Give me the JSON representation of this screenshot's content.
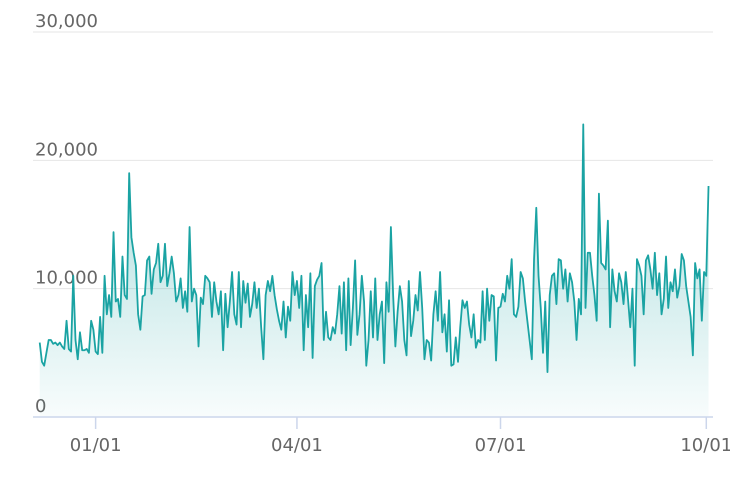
{
  "chart_data": {
    "type": "area",
    "color": "#1aa3a3",
    "grid": true,
    "xlim": [
      -28,
      276
    ],
    "xticks": [
      {
        "value": 0,
        "label": "01/01"
      },
      {
        "value": 90,
        "label": "04/01"
      },
      {
        "value": 181,
        "label": "07/01"
      },
      {
        "value": 273,
        "label": "10/01"
      }
    ],
    "ylim": [
      0,
      30000
    ],
    "yticks": [
      {
        "value": 0,
        "label": "0"
      },
      {
        "value": 10000,
        "label": "10,000"
      },
      {
        "value": 20000,
        "label": "20,000"
      },
      {
        "value": 30000,
        "label": "30,000"
      }
    ],
    "x": [
      -25,
      -24,
      -23,
      -22,
      -21,
      -20,
      -19,
      -18,
      -17,
      -16,
      -15,
      -14,
      -13,
      -12,
      -11,
      -10,
      -9,
      -8,
      -7,
      -6,
      -5,
      -4,
      -3,
      -2,
      -1,
      0,
      1,
      2,
      3,
      4,
      5,
      6,
      7,
      8,
      9,
      10,
      11,
      12,
      13,
      14,
      15,
      16,
      17,
      18,
      19,
      20,
      21,
      22,
      23,
      24,
      25,
      26,
      27,
      28,
      29,
      30,
      31,
      32,
      33,
      34,
      35,
      36,
      37,
      38,
      39,
      40,
      41,
      42,
      43,
      44,
      45,
      46,
      47,
      48,
      49,
      50,
      51,
      52,
      53,
      54,
      55,
      56,
      57,
      58,
      59,
      60,
      61,
      62,
      63,
      64,
      65,
      66,
      67,
      68,
      69,
      70,
      71,
      72,
      73,
      74,
      75,
      76,
      77,
      78,
      79,
      80,
      81,
      82,
      83,
      84,
      85,
      86,
      87,
      88,
      89,
      90,
      91,
      92,
      93,
      94,
      95,
      96,
      97,
      98,
      99,
      100,
      101,
      102,
      103,
      104,
      105,
      106,
      107,
      108,
      109,
      110,
      111,
      112,
      113,
      114,
      115,
      116,
      117,
      118,
      119,
      120,
      121,
      122,
      123,
      124,
      125,
      126,
      127,
      128,
      129,
      130,
      131,
      132,
      133,
      134,
      135,
      136,
      137,
      138,
      139,
      140,
      141,
      142,
      143,
      144,
      145,
      146,
      147,
      148,
      149,
      150,
      151,
      152,
      153,
      154,
      155,
      156,
      157,
      158,
      159,
      160,
      161,
      162,
      163,
      164,
      165,
      166,
      167,
      168,
      169,
      170,
      171,
      172,
      173,
      174,
      175,
      176,
      177,
      178,
      179,
      180,
      181,
      182,
      183,
      184,
      185,
      186,
      187,
      188,
      189,
      190,
      191,
      192,
      193,
      194,
      195,
      196,
      197,
      198,
      199,
      200,
      201,
      202,
      203,
      204,
      205,
      206,
      207,
      208,
      209,
      210,
      211,
      212,
      213,
      214,
      215,
      216,
      217,
      218,
      219,
      220,
      221,
      222,
      223,
      224,
      225,
      226,
      227,
      228,
      229,
      230,
      231,
      232,
      233,
      234,
      235,
      236,
      237,
      238,
      239,
      240,
      241,
      242,
      243,
      244,
      245,
      246,
      247,
      248,
      249,
      250,
      251,
      252,
      253,
      254,
      255,
      256,
      257,
      258,
      259,
      260,
      261,
      262,
      263,
      264,
      265,
      266,
      267,
      268,
      269,
      270,
      271,
      272,
      273,
      274
    ],
    "values": [
      5800,
      4300,
      4000,
      5000,
      6000,
      6000,
      5700,
      5800,
      5600,
      5800,
      5500,
      5300,
      7500,
      5300,
      5100,
      11000,
      6000,
      4500,
      6600,
      5200,
      5200,
      5300,
      5000,
      7500,
      6800,
      5100,
      4900,
      7800,
      5000,
      11000,
      8000,
      9500,
      7800,
      14400,
      9000,
      9200,
      7800,
      12500,
      9500,
      9200,
      19000,
      14000,
      12800,
      11800,
      8000,
      6800,
      9400,
      9500,
      12200,
      12500,
      9600,
      11500,
      12000,
      13500,
      10500,
      11000,
      13500,
      10200,
      11200,
      12500,
      11200,
      9000,
      9500,
      10800,
      8500,
      9800,
      8200,
      14800,
      9000,
      10000,
      9500,
      5500,
      9300,
      8800,
      11000,
      10800,
      10500,
      7800,
      10500,
      9000,
      8000,
      9800,
      5200,
      9600,
      7000,
      9000,
      11300,
      8000,
      7200,
      11300,
      7000,
      10600,
      8900,
      10400,
      7800,
      8800,
      10500,
      8500,
      10000,
      7000,
      4500,
      9500,
      10600,
      9800,
      11000,
      9500,
      8400,
      7500,
      6800,
      9000,
      6200,
      8600,
      7500,
      11300,
      9500,
      10600,
      8500,
      11000,
      5200,
      9500,
      7000,
      11200,
      4600,
      10200,
      10700,
      11000,
      12000,
      6000,
      8200,
      6200,
      6000,
      7000,
      6500,
      8000,
      10200,
      6500,
      10500,
      5200,
      10800,
      5600,
      8500,
      12200,
      6400,
      8000,
      11000,
      9000,
      4000,
      6000,
      9800,
      6200,
      10800,
      6000,
      8000,
      9000,
      4200,
      10500,
      8200,
      14800,
      9500,
      5500,
      8200,
      10200,
      9000,
      6000,
      4800,
      10600,
      6300,
      7500,
      9500,
      8300,
      11300,
      8500,
      4500,
      6000,
      5800,
      4400,
      8000,
      9800,
      7500,
      11300,
      6600,
      8000,
      5100,
      9100,
      4000,
      4100,
      6200,
      4300,
      7000,
      9100,
      8500,
      9000,
      7200,
      6200,
      8000,
      5400,
      6000,
      5800,
      9800,
      6000,
      10000,
      7500,
      9500,
      9400,
      4400,
      8500,
      8600,
      9600,
      9000,
      11000,
      10000,
      12300,
      8000,
      7800,
      8600,
      11300,
      10800,
      9000,
      7500,
      6000,
      4500,
      12300,
      16300,
      11000,
      8500,
      5000,
      9000,
      3500,
      9500,
      11000,
      11200,
      8800,
      12300,
      12200,
      10000,
      11500,
      9000,
      11200,
      10500,
      9000,
      6000,
      9200,
      8000,
      22800,
      8500,
      12800,
      12800,
      11000,
      9500,
      7500,
      17400,
      12000,
      11800,
      11500,
      15300,
      7000,
      11500,
      9800,
      9000,
      11200,
      10500,
      8800,
      11300,
      9200,
      7000,
      10000,
      4000,
      12300,
      11800,
      11000,
      8000,
      12200,
      12600,
      11500,
      10000,
      12800,
      9500,
      11200,
      8000,
      9200,
      12500,
      8500,
      10500,
      9800,
      11500,
      9300,
      10200,
      12700,
      12200,
      10200,
      9000,
      7800,
      4800,
      12000,
      10800,
      11500,
      7500,
      11300,
      11000,
      18000
    ]
  }
}
